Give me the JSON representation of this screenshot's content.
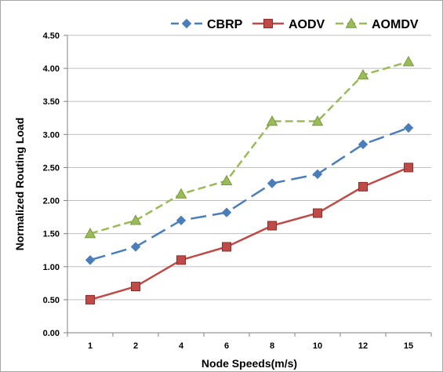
{
  "chart_data": {
    "type": "line",
    "title": "",
    "xlabel": "Node Speeds(m/s)",
    "ylabel": "Normalized Routing Load",
    "categories": [
      "1",
      "2",
      "4",
      "6",
      "8",
      "10",
      "12",
      "15"
    ],
    "ylim": [
      0,
      4.5
    ],
    "yticks": [
      "0.00",
      "0.50",
      "1.00",
      "1.50",
      "2.00",
      "2.50",
      "3.00",
      "3.50",
      "4.00",
      "4.50"
    ],
    "grid": true,
    "legend_position": "top-right",
    "series": [
      {
        "name": "CBRP",
        "values": [
          1.1,
          1.3,
          1.7,
          1.82,
          2.26,
          2.4,
          2.85,
          3.1
        ],
        "color": "#4a7ebb",
        "marker": "diamond",
        "line_style": "long-dash"
      },
      {
        "name": "AODV",
        "values": [
          0.5,
          0.7,
          1.1,
          1.3,
          1.62,
          1.81,
          2.21,
          2.5
        ],
        "color": "#be4b48",
        "marker": "square",
        "line_style": "solid"
      },
      {
        "name": "AOMDV",
        "values": [
          1.5,
          1.7,
          2.1,
          2.3,
          3.2,
          3.2,
          3.9,
          4.1
        ],
        "color": "#9bbb59",
        "marker": "triangle",
        "line_style": "dash"
      }
    ]
  }
}
